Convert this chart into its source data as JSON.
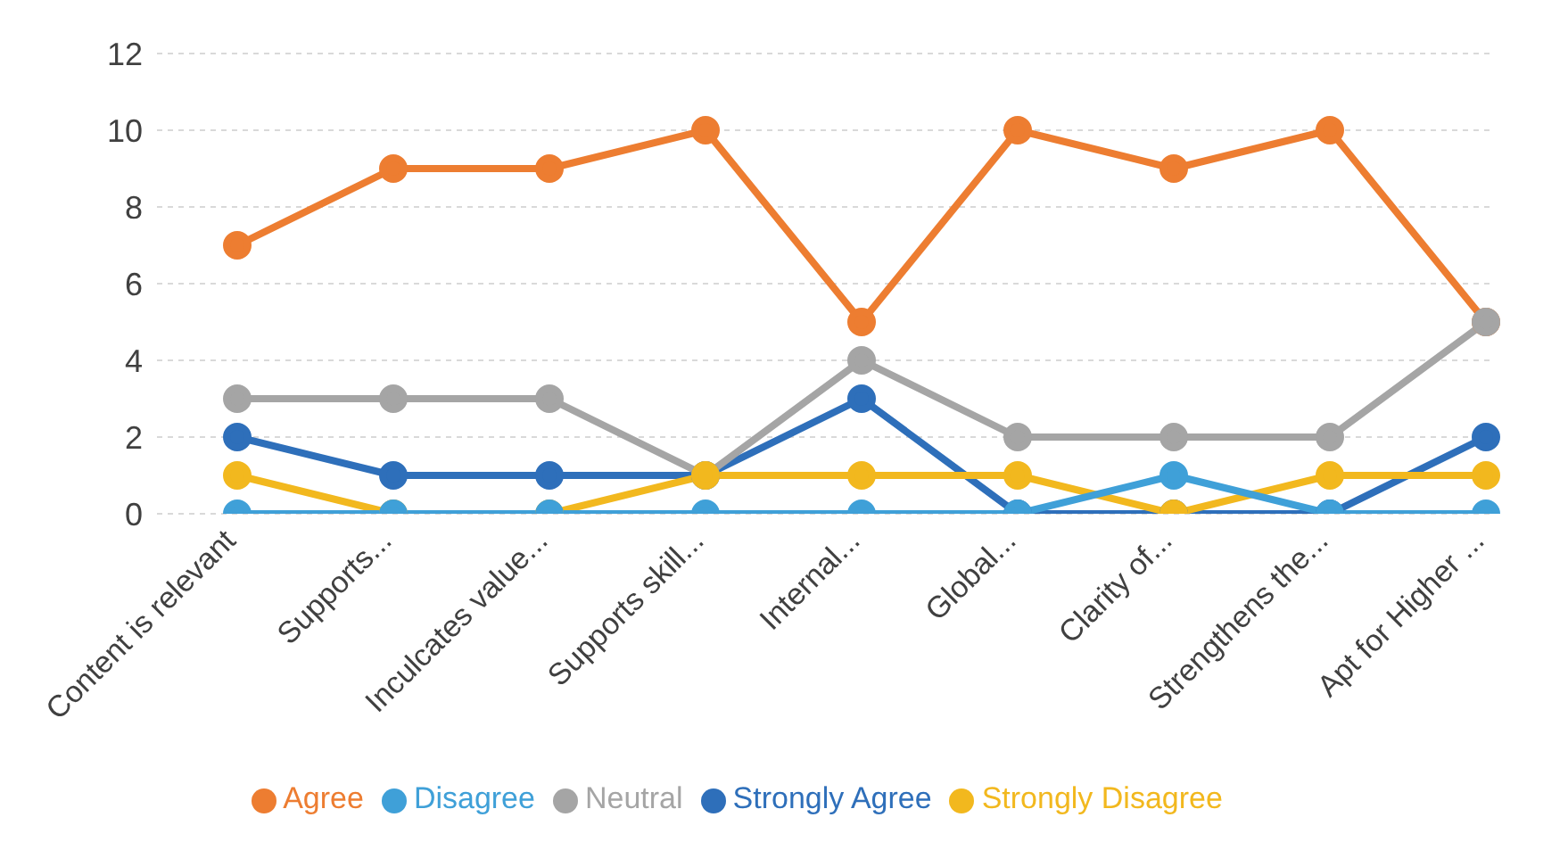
{
  "chart_data": {
    "type": "line",
    "categories": [
      "Content is relevant",
      "Supports...",
      "Inculcates value...",
      "Supports skill...",
      "Internal...",
      "Global...",
      "Clarity of...",
      "Strengthens the...",
      "Apt for Higher ..."
    ],
    "series": [
      {
        "name": "Strongly Agree",
        "color": "#2e6fba",
        "values": [
          2,
          1,
          1,
          1,
          3,
          0,
          0,
          0,
          2
        ]
      },
      {
        "name": "Agree",
        "color": "#ed7d31",
        "values": [
          7,
          9,
          9,
          10,
          5,
          10,
          9,
          10,
          5
        ]
      },
      {
        "name": "Neutral",
        "color": "#a5a5a5",
        "values": [
          3,
          3,
          3,
          1,
          4,
          2,
          2,
          2,
          5
        ]
      },
      {
        "name": "Strongly Disagree",
        "color": "#f2b81e",
        "values": [
          1,
          0,
          0,
          1,
          1,
          1,
          0,
          1,
          1
        ]
      },
      {
        "name": "Disagree",
        "color": "#3fa0d8",
        "values": [
          0,
          0,
          0,
          0,
          0,
          0,
          1,
          0,
          0
        ]
      }
    ],
    "ylim": [
      0,
      12
    ],
    "yticks": [
      0,
      2,
      4,
      6,
      8,
      10,
      12
    ],
    "grid": "y",
    "legend": "bottom",
    "marker": "circle",
    "line_style": "solid"
  }
}
